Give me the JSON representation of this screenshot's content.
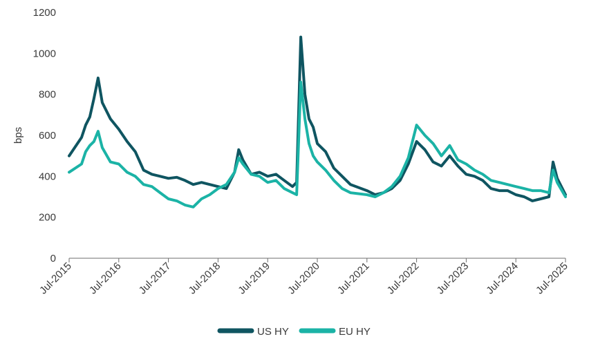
{
  "chart_data": {
    "type": "line",
    "ylabel": "bps",
    "ylim": [
      0,
      1200
    ],
    "yticks": [
      0,
      200,
      400,
      600,
      800,
      1000,
      1200
    ],
    "xticks": [
      "Jul-2015",
      "Jul-2016",
      "Jul-2017",
      "Jul-2018",
      "Jul-2019",
      "Jul-2020",
      "Jul-2021",
      "Jul-2022",
      "Jul-2023",
      "Jul-2024",
      "Jul-2025"
    ],
    "grid": false,
    "legend_position": "bottom",
    "series": [
      {
        "name": "US HY",
        "color": "#0f5561",
        "points": [
          [
            "Jul-2015",
            500
          ],
          [
            "Oct-2015",
            590
          ],
          [
            "Nov-2015",
            650
          ],
          [
            "Dec-2015",
            690
          ],
          [
            "Jan-2016",
            780
          ],
          [
            "Feb-2016",
            880
          ],
          [
            "Mar-2016",
            760
          ],
          [
            "May-2016",
            680
          ],
          [
            "Jul-2016",
            630
          ],
          [
            "Sep-2016",
            570
          ],
          [
            "Nov-2016",
            520
          ],
          [
            "Jan-2017",
            430
          ],
          [
            "Mar-2017",
            410
          ],
          [
            "May-2017",
            400
          ],
          [
            "Jul-2017",
            390
          ],
          [
            "Sep-2017",
            395
          ],
          [
            "Nov-2017",
            380
          ],
          [
            "Jan-2018",
            360
          ],
          [
            "Mar-2018",
            370
          ],
          [
            "May-2018",
            360
          ],
          [
            "Jul-2018",
            350
          ],
          [
            "Sep-2018",
            340
          ],
          [
            "Nov-2018",
            420
          ],
          [
            "Dec-2018",
            530
          ],
          [
            "Jan-2019",
            480
          ],
          [
            "Mar-2019",
            410
          ],
          [
            "May-2019",
            420
          ],
          [
            "Jul-2019",
            400
          ],
          [
            "Sep-2019",
            410
          ],
          [
            "Nov-2019",
            380
          ],
          [
            "Jan-2020",
            350
          ],
          [
            "Feb-2020",
            370
          ],
          [
            "Mar-2020",
            1080
          ],
          [
            "Apr-2020",
            800
          ],
          [
            "May-2020",
            680
          ],
          [
            "Jun-2020",
            640
          ],
          [
            "Jul-2020",
            560
          ],
          [
            "Sep-2020",
            520
          ],
          [
            "Nov-2020",
            440
          ],
          [
            "Jan-2021",
            400
          ],
          [
            "Mar-2021",
            360
          ],
          [
            "Jul-2021",
            330
          ],
          [
            "Sep-2021",
            310
          ],
          [
            "Nov-2021",
            320
          ],
          [
            "Jan-2022",
            340
          ],
          [
            "Mar-2022",
            380
          ],
          [
            "May-2022",
            460
          ],
          [
            "Jul-2022",
            570
          ],
          [
            "Sep-2022",
            530
          ],
          [
            "Nov-2022",
            470
          ],
          [
            "Jan-2023",
            450
          ],
          [
            "Mar-2023",
            500
          ],
          [
            "May-2023",
            450
          ],
          [
            "Jul-2023",
            410
          ],
          [
            "Sep-2023",
            400
          ],
          [
            "Nov-2023",
            380
          ],
          [
            "Jan-2024",
            340
          ],
          [
            "Mar-2024",
            330
          ],
          [
            "May-2024",
            330
          ],
          [
            "Jul-2024",
            310
          ],
          [
            "Sep-2024",
            300
          ],
          [
            "Nov-2024",
            280
          ],
          [
            "Jan-2025",
            290
          ],
          [
            "Mar-2025",
            300
          ],
          [
            "Apr-2025",
            470
          ],
          [
            "May-2025",
            390
          ],
          [
            "Jul-2025",
            310
          ]
        ]
      },
      {
        "name": "EU HY",
        "color": "#1bb3a6",
        "points": [
          [
            "Jul-2015",
            420
          ],
          [
            "Oct-2015",
            460
          ],
          [
            "Nov-2015",
            520
          ],
          [
            "Dec-2015",
            550
          ],
          [
            "Jan-2016",
            570
          ],
          [
            "Feb-2016",
            620
          ],
          [
            "Mar-2016",
            540
          ],
          [
            "May-2016",
            470
          ],
          [
            "Jul-2016",
            460
          ],
          [
            "Sep-2016",
            420
          ],
          [
            "Nov-2016",
            400
          ],
          [
            "Jan-2017",
            360
          ],
          [
            "Mar-2017",
            350
          ],
          [
            "May-2017",
            320
          ],
          [
            "Jul-2017",
            290
          ],
          [
            "Sep-2017",
            280
          ],
          [
            "Nov-2017",
            260
          ],
          [
            "Jan-2018",
            250
          ],
          [
            "Mar-2018",
            290
          ],
          [
            "May-2018",
            310
          ],
          [
            "Jul-2018",
            340
          ],
          [
            "Sep-2018",
            360
          ],
          [
            "Nov-2018",
            420
          ],
          [
            "Dec-2018",
            490
          ],
          [
            "Jan-2019",
            460
          ],
          [
            "Mar-2019",
            410
          ],
          [
            "May-2019",
            400
          ],
          [
            "Jul-2019",
            370
          ],
          [
            "Sep-2019",
            380
          ],
          [
            "Nov-2019",
            340
          ],
          [
            "Jan-2020",
            320
          ],
          [
            "Feb-2020",
            310
          ],
          [
            "Mar-2020",
            860
          ],
          [
            "Apr-2020",
            680
          ],
          [
            "May-2020",
            560
          ],
          [
            "Jun-2020",
            500
          ],
          [
            "Jul-2020",
            470
          ],
          [
            "Sep-2020",
            430
          ],
          [
            "Nov-2020",
            380
          ],
          [
            "Jan-2021",
            340
          ],
          [
            "Mar-2021",
            320
          ],
          [
            "Jul-2021",
            310
          ],
          [
            "Sep-2021",
            300
          ],
          [
            "Nov-2021",
            320
          ],
          [
            "Jan-2022",
            350
          ],
          [
            "Mar-2022",
            400
          ],
          [
            "May-2022",
            490
          ],
          [
            "Jul-2022",
            650
          ],
          [
            "Sep-2022",
            600
          ],
          [
            "Nov-2022",
            560
          ],
          [
            "Jan-2023",
            500
          ],
          [
            "Mar-2023",
            550
          ],
          [
            "May-2023",
            480
          ],
          [
            "Jul-2023",
            460
          ],
          [
            "Sep-2023",
            430
          ],
          [
            "Nov-2023",
            410
          ],
          [
            "Jan-2024",
            380
          ],
          [
            "Mar-2024",
            370
          ],
          [
            "May-2024",
            360
          ],
          [
            "Jul-2024",
            350
          ],
          [
            "Sep-2024",
            340
          ],
          [
            "Nov-2024",
            330
          ],
          [
            "Jan-2025",
            330
          ],
          [
            "Mar-2025",
            320
          ],
          [
            "Apr-2025",
            430
          ],
          [
            "May-2025",
            370
          ],
          [
            "Jul-2025",
            300
          ]
        ]
      }
    ]
  }
}
